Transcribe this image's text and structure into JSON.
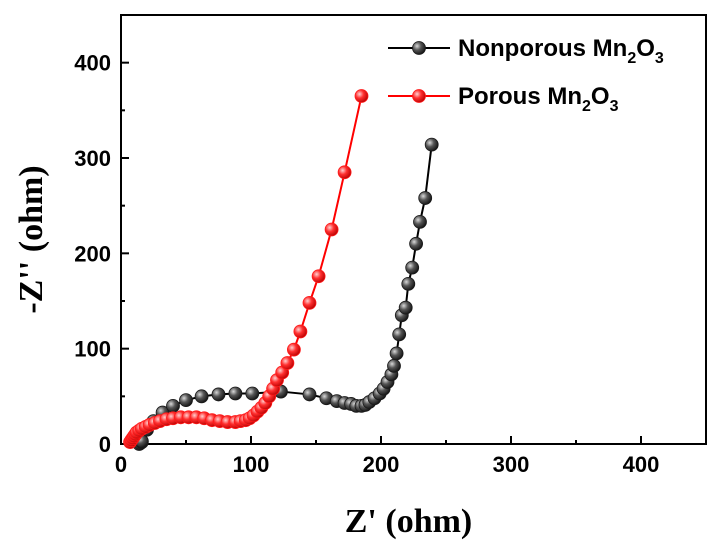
{
  "chart_data": {
    "type": "scatter",
    "xlabel": "Z' (ohm)",
    "ylabel": "-Z'' (ohm)",
    "xlim": [
      0,
      450
    ],
    "ylim": [
      0,
      450
    ],
    "x_ticks": [
      0,
      100,
      200,
      300,
      400
    ],
    "y_ticks": [
      0,
      100,
      200,
      300,
      400
    ],
    "legend_position": "top-right",
    "series": [
      {
        "name_parts": [
          "Nonporous Mn",
          "2",
          "O",
          "3"
        ],
        "color": "#000000",
        "marker_color": "#1a1a1a",
        "x": [
          14,
          15,
          16,
          16,
          20,
          25,
          32,
          40,
          50,
          62,
          75,
          88,
          101,
          123,
          145,
          158,
          166,
          172,
          177,
          181,
          185,
          188,
          191,
          195,
          199,
          202,
          205,
          208,
          210,
          212,
          214,
          216,
          219,
          221,
          224,
          227,
          230,
          234,
          239
        ],
        "y": [
          0,
          1,
          2,
          3,
          15,
          24,
          33,
          40,
          46,
          50,
          52,
          53,
          53,
          55,
          52,
          48,
          45,
          43,
          42,
          40,
          40,
          41,
          44,
          48,
          53,
          58,
          65,
          73,
          82,
          95,
          115,
          135,
          143,
          168,
          185,
          210,
          233,
          258,
          314
        ]
      },
      {
        "name_parts": [
          "Porous Mn",
          "2",
          "O",
          "3"
        ],
        "color": "#ff0000",
        "marker_color": "#ff1a1a",
        "x": [
          7,
          8,
          9,
          10,
          11,
          12,
          14,
          16,
          19,
          22,
          26,
          30,
          35,
          40,
          46,
          52,
          58,
          64,
          70,
          76,
          82,
          88,
          92,
          96,
          99,
          102,
          105,
          108,
          111,
          114,
          117,
          120,
          124,
          128,
          133,
          138,
          145,
          152,
          162,
          172,
          185
        ],
        "y": [
          2,
          4,
          6,
          8,
          10,
          12,
          14,
          16,
          18,
          20,
          22,
          24,
          26,
          27,
          28,
          28,
          28,
          27,
          25,
          24,
          23,
          23,
          24,
          25,
          27,
          30,
          34,
          38,
          43,
          50,
          58,
          67,
          75,
          85,
          99,
          118,
          148,
          176,
          225,
          285,
          365
        ]
      }
    ]
  }
}
